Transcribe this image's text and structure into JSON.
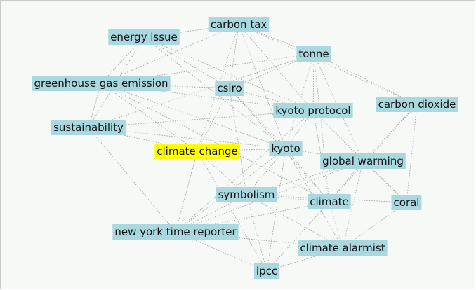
{
  "nodes": [
    {
      "label": "energy issue"
    },
    {
      "label": "carbon tax"
    },
    {
      "label": "tonne"
    },
    {
      "label": "greenhouse gas emission"
    },
    {
      "label": "csiro"
    },
    {
      "label": "kyoto protocol"
    },
    {
      "label": "carbon dioxide"
    },
    {
      "label": "sustainability"
    },
    {
      "label": "climate change"
    },
    {
      "label": "kyoto"
    },
    {
      "label": "global warming"
    },
    {
      "label": "symbolism"
    },
    {
      "label": "climate"
    },
    {
      "label": "coral"
    },
    {
      "label": "new york time reporter"
    },
    {
      "label": "climate alarmist"
    },
    {
      "label": "ipcc"
    }
  ]
}
